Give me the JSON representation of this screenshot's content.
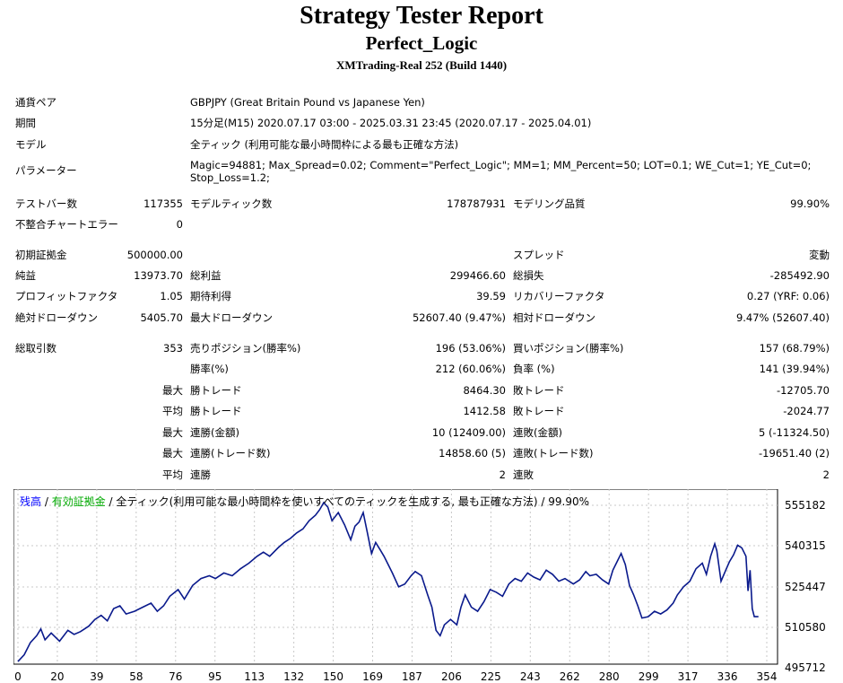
{
  "header": {
    "title": "Strategy Tester Report",
    "ea_name": "Perfect_Logic",
    "server": "XMTrading-Real 252 (Build 1440)"
  },
  "info": {
    "symbol_label": "通貨ペア",
    "symbol_value": "GBPJPY (Great Britain Pound vs Japanese Yen)",
    "period_label": "期間",
    "period_value": "15分足(M15) 2020.07.17 03:00 - 2025.03.31 23:45 (2020.07.17 - 2025.04.01)",
    "model_label": "モデル",
    "model_value": "全ティック (利用可能な最小時間枠による最も正確な方法)",
    "params_label": "パラメーター",
    "params_value": "Magic=94881; Max_Spread=0.02; Comment=\"Perfect_Logic\"; MM=1; MM_Percent=50; LOT=0.1; WE_Cut=1; YE_Cut=0; Stop_Loss=1.2;"
  },
  "stats": {
    "bars_label": "テストバー数",
    "bars_value": "117355",
    "ticks_label": "モデルティック数",
    "ticks_value": "178787931",
    "quality_label": "モデリング品質",
    "quality_value": "99.90%",
    "mismatch_label": "不整合チャートエラー",
    "mismatch_value": "0",
    "deposit_label": "初期証拠金",
    "deposit_value": "500000.00",
    "spread_label": "スプレッド",
    "spread_value": "変動",
    "net_label": "純益",
    "net_value": "13973.70",
    "gross_profit_label": "総利益",
    "gross_profit_value": "299466.60",
    "gross_loss_label": "総損失",
    "gross_loss_value": "-285492.90",
    "pf_label": "プロフィットファクタ",
    "pf_value": "1.05",
    "expected_label": "期待利得",
    "expected_value": "39.59",
    "recovery_label": "リカバリーファクタ",
    "recovery_value": "0.27 (YRF: 0.06)",
    "abs_dd_label": "絶対ドローダウン",
    "abs_dd_value": "5405.70",
    "max_dd_label": "最大ドローダウン",
    "max_dd_value": "52607.40 (9.47%)",
    "rel_dd_label": "相対ドローダウン",
    "rel_dd_value": "9.47% (52607.40)",
    "trades_label": "総取引数",
    "trades_value": "353",
    "short_label": "売りポジション(勝率%)",
    "short_value": "196 (53.06%)",
    "long_label": "買いポジション(勝率%)",
    "long_value": "157 (68.79%)",
    "win_rate_label": "勝率(%)",
    "win_rate_value": "212 (60.06%)",
    "loss_rate_label": "負率 (%)",
    "loss_rate_value": "141 (39.94%)",
    "max_label": "最大",
    "avg_label": "平均",
    "largest_win_label": "勝トレード",
    "largest_win_value": "8464.30",
    "largest_loss_label": "敗トレード",
    "largest_loss_value": "-12705.70",
    "avg_win_label": "勝トレード",
    "avg_win_value": "1412.58",
    "avg_loss_label": "敗トレード",
    "avg_loss_value": "-2024.77",
    "max_consec_wins_label": "連勝(金額)",
    "max_consec_wins_value": "10 (12409.00)",
    "max_consec_losses_label": "連敗(金額)",
    "max_consec_losses_value": "5 (-11324.50)",
    "max_consec_profit_label": "連勝(トレード数)",
    "max_consec_profit_value": "14858.60 (5)",
    "max_consec_loss_label": "連敗(トレード数)",
    "max_consec_loss_value": "-19651.40 (2)",
    "avg_consec_wins_label": "連勝",
    "avg_consec_wins_value": "2",
    "avg_consec_losses_label": "連敗",
    "avg_consec_losses_value": "2"
  },
  "chart_legend": {
    "balance": "残高",
    "sep1": " / ",
    "equity": "有効証拠金",
    "rest": " / 全ティック(利用可能な最小時間枠を使いすべてのティックを生成する, 最も正確な方法) / 99.90%"
  },
  "chart_data": {
    "type": "line",
    "series": [
      {
        "name": "残高",
        "color": "#0a1a8c"
      }
    ],
    "x_ticks": [
      "0",
      "20",
      "39",
      "58",
      "76",
      "95",
      "113",
      "132",
      "150",
      "169",
      "187",
      "206",
      "225",
      "243",
      "262",
      "280",
      "299",
      "317",
      "336",
      "354"
    ],
    "y_ticks": [
      "555182",
      "540315",
      "525447",
      "510580",
      "495712"
    ],
    "xlim": [
      0,
      360
    ],
    "ylim": [
      495712,
      560000
    ],
    "points": [
      [
        0,
        498000
      ],
      [
        3,
        500500
      ],
      [
        6,
        505000
      ],
      [
        9,
        507500
      ],
      [
        11,
        510000
      ],
      [
        13,
        506000
      ],
      [
        16,
        508500
      ],
      [
        20,
        505500
      ],
      [
        24,
        509500
      ],
      [
        27,
        508000
      ],
      [
        30,
        509000
      ],
      [
        34,
        511000
      ],
      [
        37,
        513500
      ],
      [
        40,
        515000
      ],
      [
        43,
        513000
      ],
      [
        46,
        517500
      ],
      [
        49,
        518500
      ],
      [
        52,
        515500
      ],
      [
        56,
        516500
      ],
      [
        60,
        518000
      ],
      [
        64,
        519500
      ],
      [
        67,
        516500
      ],
      [
        70,
        518500
      ],
      [
        73,
        522000
      ],
      [
        77,
        524500
      ],
      [
        80,
        521000
      ],
      [
        84,
        526000
      ],
      [
        88,
        528500
      ],
      [
        92,
        529500
      ],
      [
        95,
        528500
      ],
      [
        99,
        530500
      ],
      [
        103,
        529500
      ],
      [
        107,
        532000
      ],
      [
        111,
        534000
      ],
      [
        115,
        536500
      ],
      [
        118,
        538000
      ],
      [
        121,
        536500
      ],
      [
        125,
        539500
      ],
      [
        128,
        541500
      ],
      [
        131,
        543000
      ],
      [
        134,
        545000
      ],
      [
        137,
        546500
      ],
      [
        140,
        549500
      ],
      [
        143,
        551500
      ],
      [
        145,
        553500
      ],
      [
        147,
        556500
      ],
      [
        149,
        554500
      ],
      [
        151,
        549500
      ],
      [
        154,
        552500
      ],
      [
        157,
        548000
      ],
      [
        160,
        542500
      ],
      [
        162,
        547500
      ],
      [
        164,
        549000
      ],
      [
        166,
        552500
      ],
      [
        168,
        545000
      ],
      [
        170,
        537500
      ],
      [
        172,
        541500
      ],
      [
        174,
        539000
      ],
      [
        176,
        536500
      ],
      [
        178,
        533500
      ],
      [
        180,
        530500
      ],
      [
        183,
        525500
      ],
      [
        186,
        526500
      ],
      [
        189,
        529500
      ],
      [
        191,
        531000
      ],
      [
        194,
        529500
      ],
      [
        197,
        522500
      ],
      [
        199,
        518000
      ],
      [
        201,
        509500
      ],
      [
        203,
        507500
      ],
      [
        205,
        511500
      ],
      [
        208,
        513500
      ],
      [
        211,
        511500
      ],
      [
        213,
        518000
      ],
      [
        215,
        522500
      ],
      [
        218,
        518000
      ],
      [
        221,
        516500
      ],
      [
        224,
        520000
      ],
      [
        227,
        524500
      ],
      [
        230,
        523500
      ],
      [
        233,
        522000
      ],
      [
        236,
        526500
      ],
      [
        239,
        528500
      ],
      [
        242,
        527500
      ],
      [
        245,
        530500
      ],
      [
        248,
        529000
      ],
      [
        251,
        528000
      ],
      [
        254,
        531500
      ],
      [
        257,
        530000
      ],
      [
        260,
        527500
      ],
      [
        263,
        528500
      ],
      [
        267,
        526500
      ],
      [
        270,
        528000
      ],
      [
        273,
        531000
      ],
      [
        275,
        529500
      ],
      [
        278,
        530000
      ],
      [
        281,
        528000
      ],
      [
        284,
        526500
      ],
      [
        286,
        531500
      ],
      [
        288,
        534500
      ],
      [
        290,
        537500
      ],
      [
        292,
        533500
      ],
      [
        294,
        526000
      ],
      [
        296,
        522500
      ],
      [
        298,
        518500
      ],
      [
        300,
        514000
      ],
      [
        303,
        514500
      ],
      [
        306,
        516500
      ],
      [
        309,
        515500
      ],
      [
        312,
        517000
      ],
      [
        315,
        519500
      ],
      [
        317,
        522500
      ],
      [
        320,
        525500
      ],
      [
        323,
        527500
      ],
      [
        326,
        532000
      ],
      [
        329,
        534000
      ],
      [
        331,
        530000
      ],
      [
        333,
        536500
      ],
      [
        335,
        541000
      ],
      [
        336,
        538500
      ],
      [
        338,
        527500
      ],
      [
        340,
        531000
      ],
      [
        342,
        534500
      ],
      [
        344,
        537000
      ],
      [
        346,
        540500
      ],
      [
        348,
        539500
      ],
      [
        350,
        536500
      ],
      [
        351,
        524000
      ],
      [
        352,
        531500
      ],
      [
        353,
        517500
      ],
      [
        354,
        514500
      ],
      [
        356,
        514500
      ]
    ]
  }
}
